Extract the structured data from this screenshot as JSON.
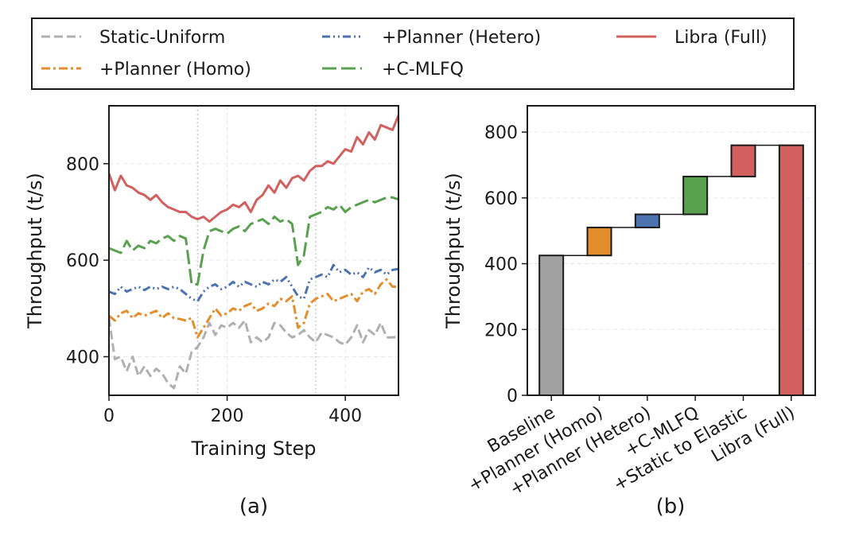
{
  "figure": {
    "panel_a_label": "(a)",
    "panel_b_label": "(b)"
  },
  "legend": {
    "placement": "top",
    "entries": [
      {
        "label": "Static-Uniform",
        "color": "#b0b0b0",
        "dash": "dashed"
      },
      {
        "label": "+Planner (Hetero)",
        "color": "#4c72b0",
        "dash": "dashdotdot"
      },
      {
        "label": "Libra (Full)",
        "color": "#d1605e",
        "dash": "solid"
      },
      {
        "label": "+Planner (Homo)",
        "color": "#e28e2c",
        "dash": "dashdot"
      },
      {
        "label": "+C-MLFQ",
        "color": "#59a14f",
        "dash": "longdash"
      }
    ]
  },
  "chart_data": [
    {
      "type": "line",
      "xlabel": "Training Step",
      "ylabel": "Throughput (t/s)",
      "xlim": [
        0,
        490
      ],
      "ylim": [
        320,
        920
      ],
      "xticks": [
        0,
        200,
        400
      ],
      "yticks": [
        400,
        600,
        800
      ],
      "grid": true,
      "vlines": [
        150,
        350
      ],
      "x": [
        0,
        10,
        20,
        30,
        40,
        50,
        60,
        70,
        80,
        90,
        100,
        110,
        120,
        130,
        140,
        150,
        160,
        170,
        180,
        190,
        200,
        210,
        220,
        230,
        240,
        250,
        260,
        270,
        280,
        290,
        300,
        310,
        320,
        330,
        340,
        350,
        360,
        370,
        380,
        390,
        400,
        410,
        420,
        430,
        440,
        450,
        460,
        470,
        480,
        490
      ],
      "series": [
        {
          "name": "Static-Uniform",
          "color": "#b0b0b0",
          "values": [
            480,
            395,
            400,
            370,
            400,
            360,
            380,
            360,
            375,
            365,
            345,
            335,
            380,
            365,
            410,
            420,
            440,
            470,
            445,
            465,
            460,
            470,
            460,
            475,
            430,
            440,
            430,
            440,
            470,
            465,
            450,
            440,
            445,
            455,
            440,
            430,
            450,
            445,
            440,
            430,
            425,
            440,
            465,
            430,
            455,
            445,
            470,
            440,
            440,
            442
          ]
        },
        {
          "name": "+Planner (Homo)",
          "color": "#e28e2c",
          "values": [
            485,
            475,
            490,
            495,
            480,
            490,
            485,
            490,
            495,
            480,
            490,
            480,
            478,
            475,
            480,
            440,
            460,
            480,
            500,
            485,
            490,
            500,
            495,
            505,
            510,
            495,
            500,
            510,
            505,
            520,
            515,
            525,
            460,
            470,
            510,
            520,
            525,
            530,
            515,
            520,
            525,
            530,
            515,
            535,
            540,
            530,
            550,
            560,
            545,
            545
          ]
        },
        {
          "name": "+Planner (Hetero)",
          "color": "#4c72b0",
          "values": [
            535,
            530,
            545,
            535,
            540,
            545,
            538,
            545,
            540,
            545,
            540,
            545,
            540,
            530,
            520,
            515,
            535,
            545,
            550,
            540,
            545,
            555,
            545,
            555,
            550,
            545,
            555,
            550,
            560,
            555,
            565,
            545,
            525,
            520,
            560,
            565,
            570,
            565,
            590,
            575,
            580,
            570,
            575,
            565,
            585,
            575,
            580,
            570,
            580,
            582
          ]
        },
        {
          "name": "+C-MLFQ",
          "color": "#59a14f",
          "values": [
            625,
            620,
            615,
            640,
            620,
            630,
            625,
            640,
            635,
            645,
            650,
            640,
            650,
            645,
            550,
            550,
            620,
            660,
            665,
            660,
            655,
            665,
            670,
            660,
            675,
            680,
            685,
            675,
            690,
            680,
            685,
            675,
            590,
            610,
            690,
            695,
            700,
            710,
            705,
            715,
            700,
            710,
            715,
            720,
            725,
            720,
            725,
            730,
            730,
            726
          ]
        },
        {
          "name": "Libra (Full)",
          "color": "#d1605e",
          "values": [
            780,
            745,
            775,
            755,
            750,
            740,
            735,
            725,
            735,
            720,
            710,
            705,
            700,
            700,
            690,
            685,
            690,
            680,
            690,
            700,
            705,
            715,
            710,
            720,
            700,
            725,
            735,
            755,
            740,
            765,
            750,
            770,
            775,
            765,
            785,
            795,
            795,
            805,
            800,
            815,
            830,
            825,
            855,
            840,
            865,
            850,
            880,
            875,
            870,
            900
          ]
        }
      ]
    },
    {
      "type": "bar",
      "subtype": "waterfall",
      "ylabel": "Throughput (t/s)",
      "ylim": [
        0,
        880
      ],
      "yticks": [
        0,
        200,
        400,
        600,
        800
      ],
      "grid": true,
      "categories": [
        "Baseline",
        "+Planner (Homo)",
        "+Planner (Hetero)",
        "+C-MLFQ",
        "+Static to Elastic",
        "Libra (Full)"
      ],
      "bars": [
        {
          "label": "Baseline",
          "start": 0,
          "end": 425,
          "color": "#a0a0a0"
        },
        {
          "label": "+Planner (Homo)",
          "start": 425,
          "end": 510,
          "color": "#e28e2c"
        },
        {
          "label": "+Planner (Hetero)",
          "start": 510,
          "end": 550,
          "color": "#4c72b0"
        },
        {
          "label": "+C-MLFQ",
          "start": 550,
          "end": 665,
          "color": "#59a14f"
        },
        {
          "label": "+Static to Elastic",
          "start": 665,
          "end": 760,
          "color": "#d1605e"
        },
        {
          "label": "Libra (Full)",
          "start": 0,
          "end": 760,
          "color": "#d1605e"
        }
      ]
    }
  ]
}
